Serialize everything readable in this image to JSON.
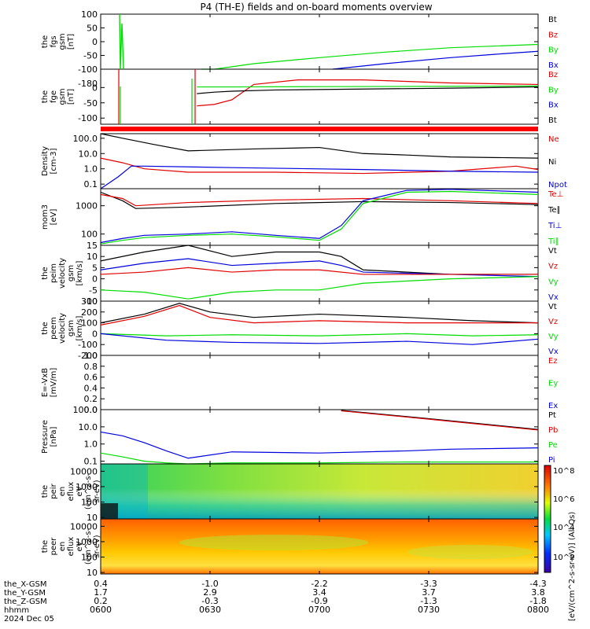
{
  "title": "P4 (TH-E) fields and on-board moments overview",
  "colors": {
    "black": "#000000",
    "red": "#e00000",
    "green": "#00dd00",
    "blue": "#0000dd"
  },
  "x_axis": {
    "rows": [
      {
        "label": "the_X-GSM",
        "values": [
          "0.4",
          "-1.0",
          "-2.2",
          "-3.3",
          "-4.3"
        ]
      },
      {
        "label": "the_Y-GSM",
        "values": [
          "1.7",
          "2.9",
          "3.4",
          "3.7",
          "3.8"
        ]
      },
      {
        "label": "the_Z-GSM",
        "values": [
          "0.2",
          "-0.3",
          "-0.9",
          "-1.3",
          "-1.8"
        ]
      },
      {
        "label": "hhmm",
        "values": [
          "0600",
          "0630",
          "0700",
          "0730",
          "0800"
        ]
      }
    ],
    "date": "2024 Dec 05",
    "range": [
      "0600",
      "0800"
    ]
  },
  "colorbar": {
    "label": "[eV/(cm^2-s-sr-eV)] (All Qs)",
    "ticks": [
      "10^8",
      "10^6",
      "10^4",
      "10^2"
    ]
  },
  "chart_data": [
    {
      "id": "fgs",
      "type": "line",
      "ylabel": [
        "the",
        "fgs",
        "gsm",
        "[nT]"
      ],
      "ylim": [
        -100,
        100
      ],
      "yticks": [
        "100",
        "50",
        "0",
        "-50",
        "-100"
      ],
      "legend": [
        {
          "name": "Bt",
          "color": "#000000"
        },
        {
          "name": "Bz",
          "color": "#e00000"
        },
        {
          "name": "By",
          "color": "#00dd00"
        },
        {
          "name": "Bx",
          "color": "#0000dd"
        }
      ],
      "series": [
        {
          "name": "By",
          "color": "#00dd00",
          "x": [
            0.23,
            0.26,
            0.35,
            0.5,
            0.65,
            0.8,
            1.0
          ],
          "y": [
            -100,
            -100,
            -80,
            -58,
            -38,
            -22,
            -10
          ]
        },
        {
          "name": "Bx",
          "color": "#0000dd",
          "x": [
            0.53,
            0.65,
            0.8,
            0.9,
            1.0
          ],
          "y": [
            -100,
            -80,
            -58,
            -46,
            -35
          ]
        }
      ]
    },
    {
      "id": "fge",
      "type": "line",
      "ylabel": [
        "the",
        "fge",
        "gsm",
        "[nT]"
      ],
      "ylim": [
        -120,
        60
      ],
      "yticks": [
        "0",
        "-50",
        "-100"
      ],
      "ytop": "-180",
      "legend": [
        {
          "name": "Bz",
          "color": "#e00000"
        },
        {
          "name": "By",
          "color": "#00dd00"
        },
        {
          "name": "Bx",
          "color": "#0000dd"
        },
        {
          "name": "Bt",
          "color": "#000000"
        }
      ],
      "series": [
        {
          "name": "Bz",
          "color": "#e00000",
          "x": [
            0.22,
            0.26,
            0.3,
            0.35,
            0.45,
            0.6,
            0.8,
            1.0
          ],
          "y": [
            -60,
            -55,
            -40,
            10,
            25,
            25,
            15,
            10
          ]
        },
        {
          "name": "Bt",
          "color": "#000000",
          "x": [
            0.22,
            0.26,
            0.3,
            0.4,
            0.6,
            0.8,
            1.0
          ],
          "y": [
            -20,
            -15,
            -12,
            -8,
            -5,
            -2,
            2
          ]
        },
        {
          "name": "By",
          "color": "#00dd00",
          "x": [
            0.22,
            0.3,
            0.5,
            0.8,
            1.0
          ],
          "y": [
            2,
            2,
            3,
            4,
            5
          ]
        }
      ]
    },
    {
      "id": "density",
      "type": "line",
      "scale": "log",
      "ylabel": [
        "Density",
        "[cm-3]"
      ],
      "ylim": [
        0.05,
        200
      ],
      "yticks": [
        "100.0",
        "10.0",
        "1.0",
        "0.1"
      ],
      "legend": [
        {
          "name": "Ne",
          "color": "#e00000"
        },
        {
          "name": "Ni",
          "color": "#000000"
        },
        {
          "name": "Npot",
          "color": "#0000dd"
        }
      ],
      "series": [
        {
          "name": "Ni",
          "color": "#000000",
          "x": [
            0,
            0.05,
            0.12,
            0.2,
            0.35,
            0.5,
            0.6,
            0.7,
            0.8,
            1.0
          ],
          "y": [
            200,
            100,
            40,
            15,
            20,
            25,
            10,
            8,
            6,
            5
          ]
        },
        {
          "name": "Ne",
          "color": "#e00000",
          "x": [
            0,
            0.05,
            0.1,
            0.2,
            0.4,
            0.6,
            0.8,
            0.95,
            1.0
          ],
          "y": [
            5,
            2.5,
            1,
            0.6,
            0.6,
            0.5,
            0.7,
            1.5,
            0.9
          ]
        },
        {
          "name": "Npot",
          "color": "#0000dd",
          "x": [
            0,
            0.04,
            0.07,
            0.1,
            0.3,
            0.6,
            0.8,
            1.0
          ],
          "y": [
            0.05,
            0.3,
            1.5,
            1.5,
            1.2,
            0.9,
            0.7,
            0.6
          ]
        }
      ]
    },
    {
      "id": "temps",
      "type": "line",
      "scale": "log",
      "ylabel": [
        "mom3",
        "[eV]"
      ],
      "ylim": [
        40,
        4000
      ],
      "yticks": [
        "1000",
        "100"
      ],
      "legend": [
        {
          "name": "Te⊥",
          "color": "#e00000"
        },
        {
          "name": "Te∥",
          "color": "#000000"
        },
        {
          "name": "Ti⊥",
          "color": "#0000dd"
        },
        {
          "name": "Ti∥",
          "color": "#00dd00"
        }
      ],
      "series": [
        {
          "name": "Te∥",
          "color": "#000000",
          "x": [
            0,
            0.05,
            0.08,
            0.2,
            0.4,
            0.6,
            0.8,
            1.0
          ],
          "y": [
            3000,
            1500,
            800,
            900,
            1200,
            1400,
            1300,
            1100
          ]
        },
        {
          "name": "Te⊥",
          "color": "#e00000",
          "x": [
            0,
            0.05,
            0.08,
            0.2,
            0.4,
            0.6,
            0.8,
            1.0
          ],
          "y": [
            2500,
            1800,
            1000,
            1300,
            1600,
            1800,
            1500,
            1200
          ]
        },
        {
          "name": "Ti⊥",
          "color": "#0000dd",
          "x": [
            0,
            0.05,
            0.1,
            0.2,
            0.3,
            0.4,
            0.5,
            0.55,
            0.6,
            0.7,
            0.8,
            1.0
          ],
          "y": [
            50,
            70,
            90,
            100,
            120,
            90,
            70,
            200,
            1500,
            3500,
            3800,
            3000
          ]
        },
        {
          "name": "Ti∥",
          "color": "#00dd00",
          "x": [
            0,
            0.05,
            0.1,
            0.2,
            0.3,
            0.4,
            0.5,
            0.55,
            0.6,
            0.7,
            0.8,
            1.0
          ],
          "y": [
            45,
            60,
            75,
            90,
            100,
            80,
            60,
            150,
            1200,
            3000,
            3200,
            2500
          ]
        }
      ]
    },
    {
      "id": "peim",
      "type": "line",
      "ylabel": [
        "the",
        "peim",
        "velocity",
        "gsm",
        "[km/s]"
      ],
      "ylim": [
        -10,
        15
      ],
      "yticks": [
        "15",
        "10",
        "5",
        "0",
        "-5",
        "-10"
      ],
      "legend": [
        {
          "name": "Vt",
          "color": "#000000"
        },
        {
          "name": "Vz",
          "color": "#e00000"
        },
        {
          "name": "Vy",
          "color": "#00dd00"
        },
        {
          "name": "Vx",
          "color": "#0000dd"
        }
      ],
      "series": [
        {
          "name": "Vt",
          "color": "#000000",
          "x": [
            0,
            0.1,
            0.2,
            0.3,
            0.4,
            0.5,
            0.55,
            0.6,
            0.8,
            1.0
          ],
          "y": [
            8,
            12,
            15,
            10,
            12,
            12,
            10,
            4,
            2,
            2
          ]
        },
        {
          "name": "Vx",
          "color": "#0000dd",
          "x": [
            0,
            0.1,
            0.2,
            0.3,
            0.4,
            0.5,
            0.55,
            0.6,
            0.8,
            1.0
          ],
          "y": [
            4,
            7,
            9,
            6,
            7,
            8,
            6,
            3,
            2,
            1
          ]
        },
        {
          "name": "Vz",
          "color": "#e00000",
          "x": [
            0,
            0.1,
            0.2,
            0.3,
            0.4,
            0.5,
            0.6,
            0.8,
            1.0
          ],
          "y": [
            2,
            3,
            5,
            3,
            4,
            4,
            2,
            2,
            2
          ]
        },
        {
          "name": "Vy",
          "color": "#00dd00",
          "x": [
            0,
            0.1,
            0.2,
            0.3,
            0.4,
            0.5,
            0.6,
            0.8,
            1.0
          ],
          "y": [
            -5,
            -6,
            -9,
            -6,
            -5,
            -5,
            -2,
            0,
            1
          ]
        }
      ]
    },
    {
      "id": "peem",
      "type": "line",
      "ylabel": [
        "the",
        "peem",
        "velocity",
        "gsm",
        "[km/s]"
      ],
      "ylim": [
        -200,
        300
      ],
      "yticks": [
        "300",
        "200",
        "100",
        "0",
        "-100",
        "-200"
      ],
      "legend": [
        {
          "name": "Vt",
          "color": "#000000"
        },
        {
          "name": "Vz",
          "color": "#e00000"
        },
        {
          "name": "Vy",
          "color": "#00dd00"
        },
        {
          "name": "Vx",
          "color": "#0000dd"
        }
      ],
      "series": [
        {
          "name": "Vt",
          "color": "#000000",
          "x": [
            0,
            0.1,
            0.18,
            0.25,
            0.35,
            0.5,
            0.7,
            0.85,
            1.0
          ],
          "y": [
            100,
            180,
            280,
            200,
            150,
            180,
            150,
            120,
            100
          ]
        },
        {
          "name": "Vz",
          "color": "#e00000",
          "x": [
            0,
            0.1,
            0.18,
            0.25,
            0.35,
            0.5,
            0.7,
            0.85,
            1.0
          ],
          "y": [
            80,
            160,
            260,
            150,
            100,
            120,
            100,
            100,
            100
          ]
        },
        {
          "name": "Vy",
          "color": "#00dd00",
          "x": [
            0,
            0.15,
            0.3,
            0.5,
            0.7,
            0.85,
            1.0
          ],
          "y": [
            0,
            -20,
            -10,
            -20,
            0,
            -20,
            -10
          ]
        },
        {
          "name": "Vx",
          "color": "#0000dd",
          "x": [
            0,
            0.15,
            0.3,
            0.5,
            0.7,
            0.85,
            1.0
          ],
          "y": [
            0,
            -60,
            -80,
            -90,
            -70,
            -100,
            -50
          ]
        }
      ]
    },
    {
      "id": "efield",
      "type": "line",
      "ylabel": [
        "E=-VxB",
        "[mV/m]"
      ],
      "ylim": [
        0,
        1
      ],
      "yticks": [
        "1.0",
        "0.8",
        "0.6",
        "0.4",
        "0.2",
        "0.0"
      ],
      "legend": [
        {
          "name": "Ez",
          "color": "#e00000"
        },
        {
          "name": "Ey",
          "color": "#00dd00"
        },
        {
          "name": "Ex",
          "color": "#0000dd"
        }
      ],
      "series": []
    },
    {
      "id": "pressure",
      "type": "line",
      "scale": "log",
      "ylabel": [
        "Pressure",
        "[nPa]"
      ],
      "ylim": [
        0.07,
        100
      ],
      "yticks": [
        "100.0",
        "10.0",
        "1.0",
        "0.1"
      ],
      "legend": [
        {
          "name": "Pt",
          "color": "#000000"
        },
        {
          "name": "Pb",
          "color": "#e00000"
        },
        {
          "name": "Pe",
          "color": "#00dd00"
        },
        {
          "name": "Pi",
          "color": "#0000dd"
        }
      ],
      "series": [
        {
          "name": "Pt",
          "color": "#000000",
          "x": [
            0.55,
            0.75,
            1.0
          ],
          "y": [
            90,
            30,
            7
          ]
        },
        {
          "name": "Pb",
          "color": "#e00000",
          "x": [
            0.55,
            0.75,
            1.0
          ],
          "y": [
            85,
            28,
            6.5
          ]
        },
        {
          "name": "Pi",
          "color": "#0000dd",
          "x": [
            0,
            0.05,
            0.1,
            0.15,
            0.2,
            0.3,
            0.5,
            0.7,
            0.8,
            1.0
          ],
          "y": [
            5,
            3,
            1.2,
            0.4,
            0.15,
            0.35,
            0.3,
            0.4,
            0.5,
            0.6
          ]
        },
        {
          "name": "Pe",
          "color": "#00dd00",
          "x": [
            0,
            0.05,
            0.1,
            0.15,
            0.2,
            0.3,
            0.5,
            0.7,
            1.0
          ],
          "y": [
            0.3,
            0.18,
            0.1,
            0.08,
            0.07,
            0.08,
            0.08,
            0.09,
            0.09
          ]
        }
      ]
    },
    {
      "id": "peir",
      "type": "heatmap",
      "ylabel": [
        "the",
        "peir",
        "en",
        "eflux",
        "eV",
        "(cm^2-s-",
        "sr-eV)"
      ],
      "yticks": [
        "10000",
        "1000",
        "100",
        "10"
      ],
      "scale": "log",
      "ylim": [
        8,
        30000
      ]
    },
    {
      "id": "peer",
      "type": "heatmap",
      "ylabel": [
        "the",
        "peer",
        "en",
        "eflux",
        "eV",
        "(cm^2-s-",
        "sr-eV)"
      ],
      "yticks": [
        "10000",
        "1000",
        "100",
        "10"
      ],
      "scale": "log",
      "ylim": [
        8,
        30000
      ]
    }
  ]
}
